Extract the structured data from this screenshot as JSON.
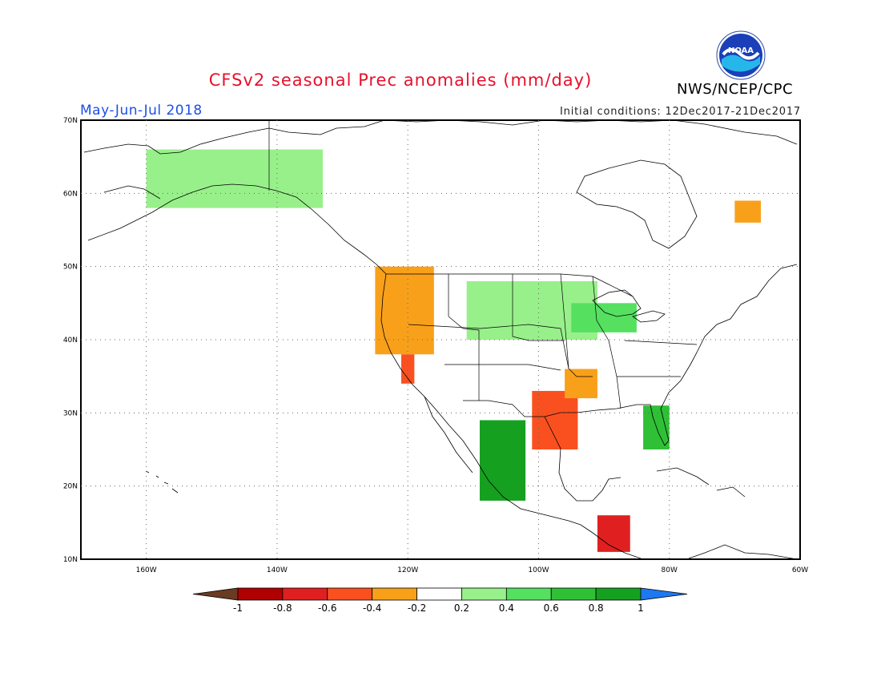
{
  "title": "CFSv2 seasonal Prec anomalies (mm/day)",
  "season": "May-Jun-Jul 2018",
  "initial_conditions": "Initial conditions: 12Dec2017-21Dec2017",
  "agency": "NWS/NCEP/CPC",
  "logo_text": "NOAA",
  "map": {
    "lon_range": [
      -170,
      -60
    ],
    "lat_range": [
      10,
      70
    ],
    "lat_ticks": [
      "10N",
      "20N",
      "30N",
      "40N",
      "50N",
      "60N",
      "70N"
    ],
    "lon_ticks": [
      "160W",
      "140W",
      "120W",
      "100W",
      "80W",
      "60W"
    ],
    "grid": "dotted"
  },
  "colorbar": {
    "labels": [
      "-1",
      "-0.8",
      "-0.6",
      "-0.4",
      "-0.2",
      "0.2",
      "0.4",
      "0.6",
      "0.8",
      "1"
    ],
    "colors": [
      "#6b3a22",
      "#b00000",
      "#e02020",
      "#fa5020",
      "#f9a01a",
      "#ffffff",
      "#98f08a",
      "#55e060",
      "#2fc036",
      "#16a020",
      "#1e78f0"
    ]
  },
  "anomaly_regions": [
    {
      "name": "pacific-northwest",
      "lon": [
        -125,
        -116
      ],
      "lat": [
        38,
        50
      ],
      "value": -0.3
    },
    {
      "name": "california",
      "lon": [
        -121,
        -119
      ],
      "lat": [
        34,
        38
      ],
      "value": -0.5
    },
    {
      "name": "texas",
      "lon": [
        -101,
        -94
      ],
      "lat": [
        25,
        33
      ],
      "value": -0.5
    },
    {
      "name": "mid-south",
      "lon": [
        -96,
        -91
      ],
      "lat": [
        32,
        36
      ],
      "value": -0.3
    },
    {
      "name": "central-america",
      "lon": [
        -91,
        -86
      ],
      "lat": [
        11,
        16
      ],
      "value": -0.7
    },
    {
      "name": "northern-plains",
      "lon": [
        -111,
        -91
      ],
      "lat": [
        40,
        48
      ],
      "value": 0.3
    },
    {
      "name": "great-lakes",
      "lon": [
        -95,
        -85
      ],
      "lat": [
        41,
        45
      ],
      "value": 0.5
    },
    {
      "name": "mexico-pacific",
      "lon": [
        -109,
        -102
      ],
      "lat": [
        18,
        29
      ],
      "value": 0.8
    },
    {
      "name": "florida",
      "lon": [
        -84,
        -80
      ],
      "lat": [
        25,
        31
      ],
      "value": 0.6
    },
    {
      "name": "alaska",
      "lon": [
        -160,
        -133
      ],
      "lat": [
        58,
        66
      ],
      "value": 0.3
    },
    {
      "name": "quebec",
      "lon": [
        -70,
        -66
      ],
      "lat": [
        56,
        59
      ],
      "value": -0.3
    }
  ]
}
